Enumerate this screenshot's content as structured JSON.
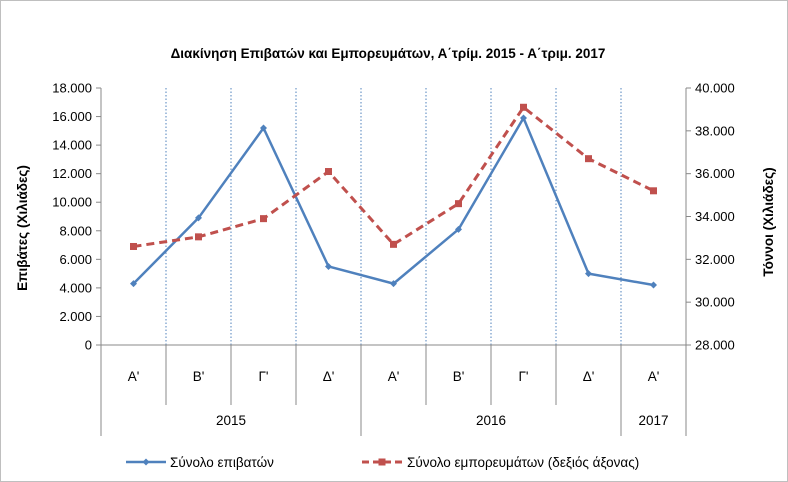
{
  "chart_data": {
    "type": "line",
    "title": "Διακίνηση Επιβατών και Εμπορευμάτων, Α΄τρίμ. 2015 - Α΄τριμ. 2017",
    "categories": [
      "Α'",
      "Β'",
      "Γ'",
      "Δ'",
      "Α'",
      "Β'",
      "Γ'",
      "Δ'",
      "Α'"
    ],
    "years": [
      {
        "label": "2015",
        "span": 4
      },
      {
        "label": "2016",
        "span": 4
      },
      {
        "label": "2017",
        "span": 1
      }
    ],
    "ylabel": "Επιβάτες (Χιλιάδες)",
    "y2label": "Τόννοι (Χιλιάδες)",
    "ylim": [
      0,
      18000
    ],
    "yticks": [
      0,
      2000,
      4000,
      6000,
      8000,
      10000,
      12000,
      14000,
      16000,
      18000
    ],
    "ytick_labels": [
      "0",
      "2.000",
      "4.000",
      "6.000",
      "8.000",
      "10.000",
      "12.000",
      "14.000",
      "16.000",
      "18.000"
    ],
    "y2lim": [
      28000,
      40000
    ],
    "y2ticks": [
      28000,
      30000,
      32000,
      34000,
      36000,
      38000,
      40000
    ],
    "y2tick_labels": [
      "28.000",
      "30.000",
      "32.000",
      "34.000",
      "36.000",
      "38.000",
      "40.000"
    ],
    "grid": "vertical dotted",
    "legend": "bottom",
    "series": [
      {
        "name": "Σύνολο επιβατών",
        "axis": "left",
        "color": "#4f81bd",
        "marker": "diamond",
        "line": "solid",
        "values": [
          4300,
          8900,
          15200,
          5500,
          4300,
          8100,
          15900,
          5000,
          4200
        ]
      },
      {
        "name": "Σύνολο εμπορευμάτων (δεξιός άξονας)",
        "axis": "right",
        "color": "#c0504d",
        "marker": "square",
        "line": "dashed",
        "values": [
          32600,
          33050,
          33900,
          36100,
          32700,
          34600,
          39100,
          36700,
          35200
        ]
      }
    ]
  }
}
